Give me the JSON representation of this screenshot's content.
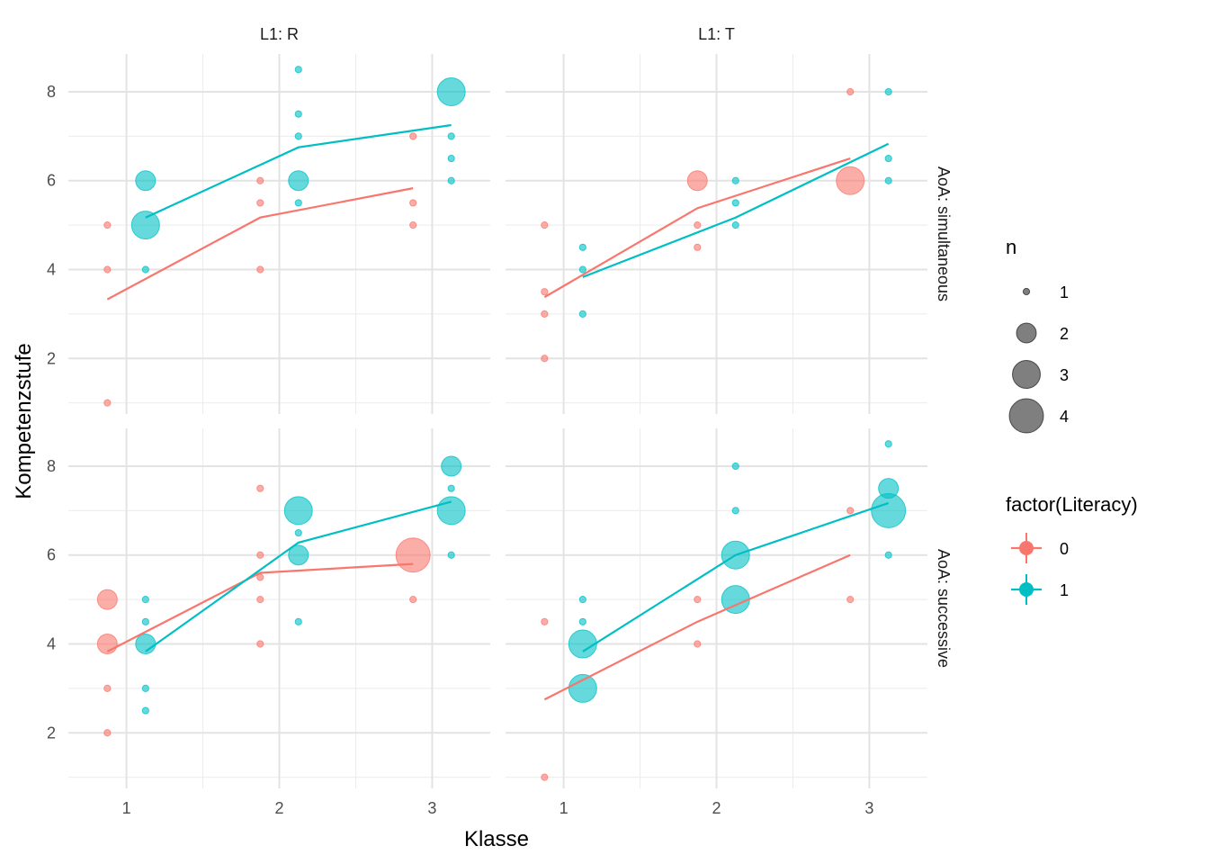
{
  "chart_data": {
    "type": "scatter",
    "xlabel": "Klasse",
    "ylabel": "Kompetenzstufe",
    "x_ticks": [
      1,
      2,
      3
    ],
    "y_ticks": [
      2,
      4,
      6,
      8
    ],
    "xlim": [
      0.62,
      3.38
    ],
    "ylim": [
      0.75,
      8.85
    ],
    "grid": true,
    "col_strips": [
      "L1: R",
      "L1: T"
    ],
    "row_strips": [
      "AoA: simultaneous",
      "AoA: successive"
    ],
    "dodge": 0.125,
    "colors": {
      "0": "#F8766D",
      "1": "#00BFC4"
    },
    "legend_size": {
      "title": "n",
      "values": [
        "1",
        "2",
        "3",
        "4"
      ]
    },
    "legend_color": {
      "title": "factor(Literacy)",
      "values": [
        "0",
        "1"
      ]
    },
    "panels": [
      {
        "col": 0,
        "row": 0,
        "points": [
          {
            "lit": 0,
            "x": 1,
            "y": 5,
            "n": 1
          },
          {
            "lit": 0,
            "x": 1,
            "y": 4,
            "n": 1
          },
          {
            "lit": 0,
            "x": 1,
            "y": 1,
            "n": 1
          },
          {
            "lit": 1,
            "x": 1,
            "y": 6,
            "n": 2
          },
          {
            "lit": 1,
            "x": 1,
            "y": 5,
            "n": 3
          },
          {
            "lit": 1,
            "x": 1,
            "y": 4,
            "n": 1
          },
          {
            "lit": 0,
            "x": 2,
            "y": 6,
            "n": 1
          },
          {
            "lit": 0,
            "x": 2,
            "y": 5.5,
            "n": 1
          },
          {
            "lit": 0,
            "x": 2,
            "y": 4,
            "n": 1
          },
          {
            "lit": 1,
            "x": 2,
            "y": 8.5,
            "n": 1
          },
          {
            "lit": 1,
            "x": 2,
            "y": 7.5,
            "n": 1
          },
          {
            "lit": 1,
            "x": 2,
            "y": 7,
            "n": 1
          },
          {
            "lit": 1,
            "x": 2,
            "y": 6,
            "n": 2
          },
          {
            "lit": 1,
            "x": 2,
            "y": 5.5,
            "n": 1
          },
          {
            "lit": 0,
            "x": 3,
            "y": 7,
            "n": 1
          },
          {
            "lit": 0,
            "x": 3,
            "y": 5.5,
            "n": 1
          },
          {
            "lit": 0,
            "x": 3,
            "y": 5,
            "n": 1
          },
          {
            "lit": 1,
            "x": 3,
            "y": 8,
            "n": 3
          },
          {
            "lit": 1,
            "x": 3,
            "y": 7,
            "n": 1
          },
          {
            "lit": 1,
            "x": 3,
            "y": 6.5,
            "n": 1
          },
          {
            "lit": 1,
            "x": 3,
            "y": 6,
            "n": 1
          }
        ],
        "lines": [
          {
            "lit": 0,
            "values": [
              [
                1,
                3.33
              ],
              [
                2,
                5.17
              ],
              [
                3,
                5.83
              ]
            ]
          },
          {
            "lit": 1,
            "values": [
              [
                1,
                5.17
              ],
              [
                2,
                6.75
              ],
              [
                3,
                7.25
              ]
            ]
          }
        ]
      },
      {
        "col": 1,
        "row": 0,
        "points": [
          {
            "lit": 0,
            "x": 1,
            "y": 5,
            "n": 1
          },
          {
            "lit": 0,
            "x": 1,
            "y": 3.5,
            "n": 1
          },
          {
            "lit": 0,
            "x": 1,
            "y": 3,
            "n": 1
          },
          {
            "lit": 0,
            "x": 1,
            "y": 2,
            "n": 1
          },
          {
            "lit": 1,
            "x": 1,
            "y": 4.5,
            "n": 1
          },
          {
            "lit": 1,
            "x": 1,
            "y": 4,
            "n": 1
          },
          {
            "lit": 1,
            "x": 1,
            "y": 3,
            "n": 1
          },
          {
            "lit": 0,
            "x": 2,
            "y": 6,
            "n": 2
          },
          {
            "lit": 0,
            "x": 2,
            "y": 5,
            "n": 1
          },
          {
            "lit": 0,
            "x": 2,
            "y": 4.5,
            "n": 1
          },
          {
            "lit": 1,
            "x": 2,
            "y": 6,
            "n": 1
          },
          {
            "lit": 1,
            "x": 2,
            "y": 5.5,
            "n": 1
          },
          {
            "lit": 1,
            "x": 2,
            "y": 5,
            "n": 1
          },
          {
            "lit": 0,
            "x": 3,
            "y": 8,
            "n": 1
          },
          {
            "lit": 0,
            "x": 3,
            "y": 6,
            "n": 3
          },
          {
            "lit": 1,
            "x": 3,
            "y": 8,
            "n": 1
          },
          {
            "lit": 1,
            "x": 3,
            "y": 6.5,
            "n": 1
          },
          {
            "lit": 1,
            "x": 3,
            "y": 6,
            "n": 1
          }
        ],
        "lines": [
          {
            "lit": 0,
            "values": [
              [
                1,
                3.38
              ],
              [
                2,
                5.38
              ],
              [
                3,
                6.5
              ]
            ]
          },
          {
            "lit": 1,
            "values": [
              [
                1,
                3.83
              ],
              [
                2,
                5.17
              ],
              [
                3,
                6.83
              ]
            ]
          }
        ]
      },
      {
        "col": 0,
        "row": 1,
        "points": [
          {
            "lit": 0,
            "x": 1,
            "y": 5,
            "n": 2
          },
          {
            "lit": 0,
            "x": 1,
            "y": 4,
            "n": 2
          },
          {
            "lit": 0,
            "x": 1,
            "y": 3,
            "n": 1
          },
          {
            "lit": 0,
            "x": 1,
            "y": 2,
            "n": 1
          },
          {
            "lit": 1,
            "x": 1,
            "y": 5,
            "n": 1
          },
          {
            "lit": 1,
            "x": 1,
            "y": 4.5,
            "n": 1
          },
          {
            "lit": 1,
            "x": 1,
            "y": 4,
            "n": 2
          },
          {
            "lit": 1,
            "x": 1,
            "y": 3,
            "n": 1
          },
          {
            "lit": 1,
            "x": 1,
            "y": 2.5,
            "n": 1
          },
          {
            "lit": 0,
            "x": 2,
            "y": 7.5,
            "n": 1
          },
          {
            "lit": 0,
            "x": 2,
            "y": 6,
            "n": 1
          },
          {
            "lit": 0,
            "x": 2,
            "y": 5.5,
            "n": 1
          },
          {
            "lit": 0,
            "x": 2,
            "y": 5,
            "n": 1
          },
          {
            "lit": 0,
            "x": 2,
            "y": 4,
            "n": 1
          },
          {
            "lit": 1,
            "x": 2,
            "y": 7,
            "n": 3
          },
          {
            "lit": 1,
            "x": 2,
            "y": 6.5,
            "n": 1
          },
          {
            "lit": 1,
            "x": 2,
            "y": 6,
            "n": 2
          },
          {
            "lit": 1,
            "x": 2,
            "y": 4.5,
            "n": 1
          },
          {
            "lit": 0,
            "x": 3,
            "y": 6,
            "n": 4
          },
          {
            "lit": 0,
            "x": 3,
            "y": 5,
            "n": 1
          },
          {
            "lit": 1,
            "x": 3,
            "y": 8,
            "n": 2
          },
          {
            "lit": 1,
            "x": 3,
            "y": 7.5,
            "n": 1
          },
          {
            "lit": 1,
            "x": 3,
            "y": 7,
            "n": 3
          },
          {
            "lit": 1,
            "x": 3,
            "y": 6,
            "n": 1
          }
        ],
        "lines": [
          {
            "lit": 0,
            "values": [
              [
                1,
                3.83
              ],
              [
                2,
                5.6
              ],
              [
                3,
                5.8
              ]
            ]
          },
          {
            "lit": 1,
            "values": [
              [
                1,
                3.83
              ],
              [
                2,
                6.28
              ],
              [
                3,
                7.2
              ]
            ]
          }
        ]
      },
      {
        "col": 1,
        "row": 1,
        "points": [
          {
            "lit": 0,
            "x": 1,
            "y": 4.5,
            "n": 1
          },
          {
            "lit": 0,
            "x": 1,
            "y": 1,
            "n": 1
          },
          {
            "lit": 1,
            "x": 1,
            "y": 5,
            "n": 1
          },
          {
            "lit": 1,
            "x": 1,
            "y": 4.5,
            "n": 1
          },
          {
            "lit": 1,
            "x": 1,
            "y": 4,
            "n": 3
          },
          {
            "lit": 1,
            "x": 1,
            "y": 3,
            "n": 3
          },
          {
            "lit": 0,
            "x": 2,
            "y": 5,
            "n": 1
          },
          {
            "lit": 0,
            "x": 2,
            "y": 4,
            "n": 1
          },
          {
            "lit": 1,
            "x": 2,
            "y": 8,
            "n": 1
          },
          {
            "lit": 1,
            "x": 2,
            "y": 7,
            "n": 1
          },
          {
            "lit": 1,
            "x": 2,
            "y": 6,
            "n": 3
          },
          {
            "lit": 1,
            "x": 2,
            "y": 5,
            "n": 3
          },
          {
            "lit": 0,
            "x": 3,
            "y": 7,
            "n": 1
          },
          {
            "lit": 0,
            "x": 3,
            "y": 5,
            "n": 1
          },
          {
            "lit": 1,
            "x": 3,
            "y": 8.5,
            "n": 1
          },
          {
            "lit": 1,
            "x": 3,
            "y": 7.5,
            "n": 2
          },
          {
            "lit": 1,
            "x": 3,
            "y": 7,
            "n": 4
          },
          {
            "lit": 1,
            "x": 3,
            "y": 6,
            "n": 1
          }
        ],
        "lines": [
          {
            "lit": 0,
            "values": [
              [
                1,
                2.75
              ],
              [
                2,
                4.5
              ],
              [
                3,
                6
              ]
            ]
          },
          {
            "lit": 1,
            "values": [
              [
                1,
                3.83
              ],
              [
                2,
                6
              ],
              [
                3,
                7.17
              ]
            ]
          }
        ]
      }
    ]
  }
}
